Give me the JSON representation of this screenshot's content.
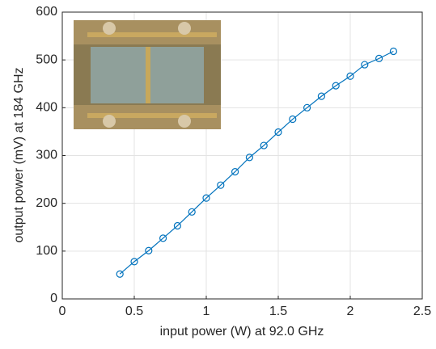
{
  "chart_data": {
    "type": "line",
    "x_label": "input power (W) at 92.0 GHz",
    "y_label": "output power (mV) at 184 GHz",
    "x": [
      0.4,
      0.5,
      0.6,
      0.7,
      0.8,
      0.9,
      1.0,
      1.1,
      1.2,
      1.3,
      1.4,
      1.5,
      1.6,
      1.7,
      1.8,
      1.9,
      2.0,
      2.1,
      2.2,
      2.3
    ],
    "series": [
      {
        "color": "#0072bd",
        "values": [
          52,
          78,
          101,
          127,
          153,
          182,
          211,
          238,
          266,
          296,
          321,
          349,
          376,
          400,
          424,
          446,
          466,
          490,
          503,
          518
        ]
      }
    ],
    "xlim": [
      0,
      2.5
    ],
    "xticks": [
      0,
      0.5,
      1,
      1.5,
      2,
      2.5
    ],
    "ylim": [
      0,
      600
    ],
    "yticks": [
      0,
      100,
      200,
      300,
      400,
      500,
      600
    ],
    "grid": true,
    "marker": "circle"
  }
}
